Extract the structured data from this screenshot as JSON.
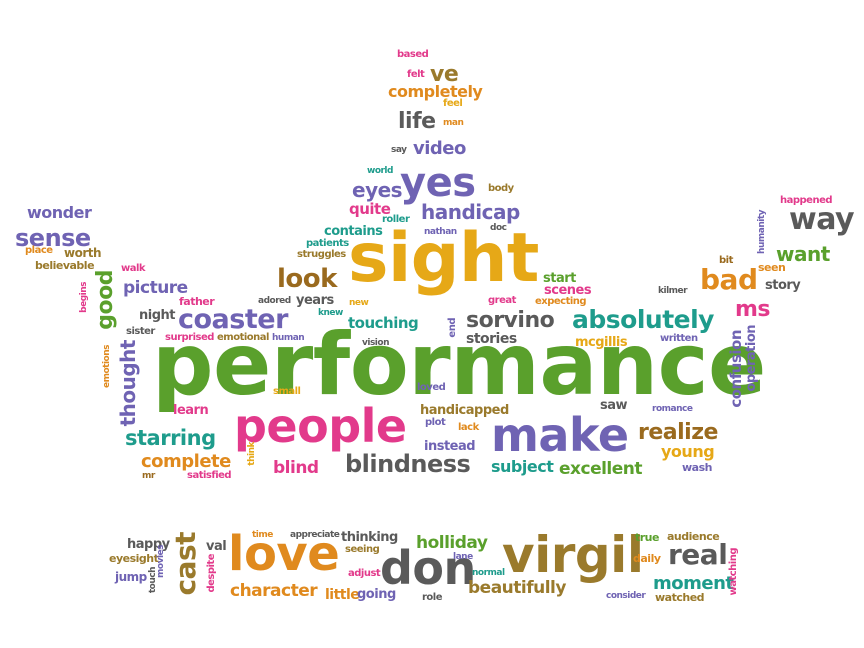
{
  "palette": {
    "purple": "#6f63b3",
    "green": "#5aa02c",
    "orange": "#e08a1e",
    "yellow": "#e6a817",
    "pink": "#e23a8b",
    "gray": "#5a5a5a",
    "teal": "#1e9c8c",
    "olive": "#9a7a2c",
    "brown": "#9a6a1e"
  },
  "words": [
    {
      "text": "based",
      "color": "pink"
    },
    {
      "text": "ve",
      "color": "olive"
    },
    {
      "text": "felt",
      "color": "pink"
    },
    {
      "text": "completely",
      "color": "orange"
    },
    {
      "text": "feel",
      "color": "yellow"
    },
    {
      "text": "life",
      "color": "gray"
    },
    {
      "text": "man",
      "color": "orange"
    },
    {
      "text": "say",
      "color": "gray"
    },
    {
      "text": "video",
      "color": "purple"
    },
    {
      "text": "world",
      "color": "teal"
    },
    {
      "text": "eyes",
      "color": "purple"
    },
    {
      "text": "yes",
      "color": "purple"
    },
    {
      "text": "body",
      "color": "olive"
    },
    {
      "text": "quite",
      "color": "pink"
    },
    {
      "text": "handicap",
      "color": "purple"
    },
    {
      "text": "roller",
      "color": "teal"
    },
    {
      "text": "contains",
      "color": "teal"
    },
    {
      "text": "nathan",
      "color": "purple"
    },
    {
      "text": "doc",
      "color": "gray"
    },
    {
      "text": "patients",
      "color": "teal"
    },
    {
      "text": "struggles",
      "color": "olive"
    },
    {
      "text": "sight",
      "color": "yellow"
    },
    {
      "text": "look",
      "color": "brown"
    },
    {
      "text": "start",
      "color": "green"
    },
    {
      "text": "scenes",
      "color": "pink"
    },
    {
      "text": "expecting",
      "color": "orange"
    },
    {
      "text": "great",
      "color": "pink"
    },
    {
      "text": "years",
      "color": "gray"
    },
    {
      "text": "adored",
      "color": "gray"
    },
    {
      "text": "knew",
      "color": "teal"
    },
    {
      "text": "new",
      "color": "yellow"
    },
    {
      "text": "touching",
      "color": "teal"
    },
    {
      "text": "end",
      "color": "purple"
    },
    {
      "text": "sorvino",
      "color": "gray"
    },
    {
      "text": "absolutely",
      "color": "teal"
    },
    {
      "text": "human",
      "color": "purple"
    },
    {
      "text": "vision",
      "color": "gray"
    },
    {
      "text": "stories",
      "color": "gray"
    },
    {
      "text": "mcgillis",
      "color": "yellow"
    },
    {
      "text": "written",
      "color": "purple"
    },
    {
      "text": "performance",
      "color": "green"
    },
    {
      "text": "wonder",
      "color": "purple"
    },
    {
      "text": "sense",
      "color": "purple"
    },
    {
      "text": "place",
      "color": "orange"
    },
    {
      "text": "worth",
      "color": "olive"
    },
    {
      "text": "believable",
      "color": "olive"
    },
    {
      "text": "walk",
      "color": "pink"
    },
    {
      "text": "begins",
      "color": "pink"
    },
    {
      "text": "good",
      "color": "green"
    },
    {
      "text": "picture",
      "color": "purple"
    },
    {
      "text": "father",
      "color": "pink"
    },
    {
      "text": "night",
      "color": "gray"
    },
    {
      "text": "coaster",
      "color": "purple"
    },
    {
      "text": "sister",
      "color": "gray"
    },
    {
      "text": "surprised",
      "color": "pink"
    },
    {
      "text": "emotional",
      "color": "olive"
    },
    {
      "text": "thought",
      "color": "purple"
    },
    {
      "text": "emotions",
      "color": "orange"
    },
    {
      "text": "learn",
      "color": "pink"
    },
    {
      "text": "small",
      "color": "yellow"
    },
    {
      "text": "loved",
      "color": "purple"
    },
    {
      "text": "plot",
      "color": "purple"
    },
    {
      "text": "handicapped",
      "color": "olive"
    },
    {
      "text": "saw",
      "color": "gray"
    },
    {
      "text": "lack",
      "color": "orange"
    },
    {
      "text": "people",
      "color": "pink"
    },
    {
      "text": "make",
      "color": "purple"
    },
    {
      "text": "starring",
      "color": "teal"
    },
    {
      "text": "instead",
      "color": "purple"
    },
    {
      "text": "complete",
      "color": "orange"
    },
    {
      "text": "think",
      "color": "yellow"
    },
    {
      "text": "mr",
      "color": "brown"
    },
    {
      "text": "satisfied",
      "color": "pink"
    },
    {
      "text": "blind",
      "color": "pink"
    },
    {
      "text": "blindness",
      "color": "gray"
    },
    {
      "text": "subject",
      "color": "teal"
    },
    {
      "text": "excellent",
      "color": "green"
    },
    {
      "text": "way",
      "color": "gray"
    },
    {
      "text": "happened",
      "color": "pink"
    },
    {
      "text": "humanity",
      "color": "purple"
    },
    {
      "text": "want",
      "color": "green"
    },
    {
      "text": "bit",
      "color": "brown"
    },
    {
      "text": "seen",
      "color": "orange"
    },
    {
      "text": "bad",
      "color": "orange"
    },
    {
      "text": "story",
      "color": "gray"
    },
    {
      "text": "kilmer",
      "color": "gray"
    },
    {
      "text": "ms",
      "color": "pink"
    },
    {
      "text": "confusion",
      "color": "purple"
    },
    {
      "text": "operation",
      "color": "purple"
    },
    {
      "text": "romance",
      "color": "purple"
    },
    {
      "text": "realize",
      "color": "brown"
    },
    {
      "text": "young",
      "color": "yellow"
    },
    {
      "text": "wash",
      "color": "purple"
    },
    {
      "text": "happy",
      "color": "gray"
    },
    {
      "text": "eyesight",
      "color": "olive"
    },
    {
      "text": "jump",
      "color": "purple"
    },
    {
      "text": "movies",
      "color": "purple"
    },
    {
      "text": "touch",
      "color": "gray"
    },
    {
      "text": "cast",
      "color": "olive"
    },
    {
      "text": "val",
      "color": "gray"
    },
    {
      "text": "despite",
      "color": "pink"
    },
    {
      "text": "time",
      "color": "orange"
    },
    {
      "text": "love",
      "color": "orange"
    },
    {
      "text": "appreciate",
      "color": "gray"
    },
    {
      "text": "thinking",
      "color": "gray"
    },
    {
      "text": "seeing",
      "color": "olive"
    },
    {
      "text": "character",
      "color": "orange"
    },
    {
      "text": "little",
      "color": "orange"
    },
    {
      "text": "adjust",
      "color": "pink"
    },
    {
      "text": "going",
      "color": "purple"
    },
    {
      "text": "don",
      "color": "gray"
    },
    {
      "text": "holliday",
      "color": "green"
    },
    {
      "text": "lane",
      "color": "purple"
    },
    {
      "text": "normal",
      "color": "teal"
    },
    {
      "text": "role",
      "color": "gray"
    },
    {
      "text": "virgil",
      "color": "olive"
    },
    {
      "text": "beautifully",
      "color": "olive"
    },
    {
      "text": "true",
      "color": "green"
    },
    {
      "text": "audience",
      "color": "olive"
    },
    {
      "text": "daily",
      "color": "orange"
    },
    {
      "text": "real",
      "color": "gray"
    },
    {
      "text": "moment",
      "color": "teal"
    },
    {
      "text": "consider",
      "color": "purple"
    },
    {
      "text": "watched",
      "color": "olive"
    },
    {
      "text": "watching",
      "color": "pink"
    }
  ]
}
